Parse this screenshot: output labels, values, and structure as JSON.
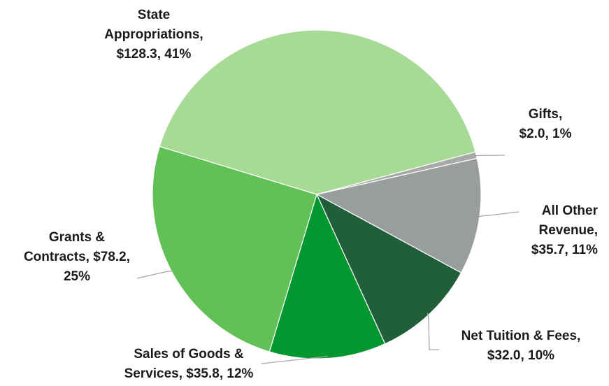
{
  "chart_data": {
    "type": "pie",
    "title": "",
    "start_angle_deg": -15,
    "direction": "clockwise",
    "slices": [
      {
        "name": "Gifts",
        "value": 2.0,
        "percent": "1%",
        "color": "#a7aaa6",
        "label_lines": [
          "Gifts,",
          "$2.0, 1%"
        ]
      },
      {
        "name": "All Other Revenue",
        "value": 35.7,
        "percent": "11%",
        "color": "#9a9d9e",
        "label_lines": [
          "All Other",
          "Revenue,",
          "$35.7, 11%"
        ]
      },
      {
        "name": "Net Tuition & Fees",
        "value": 32.0,
        "percent": "10%",
        "color": "#215f3b",
        "label_lines": [
          "Net Tuition & Fees,",
          "$32.0, 10%"
        ]
      },
      {
        "name": "Sales of Goods & Services",
        "value": 35.8,
        "percent": "12%",
        "color": "#04962f",
        "label_lines": [
          "Sales of Goods &",
          "Services, $35.8, 12%"
        ]
      },
      {
        "name": "Grants & Contracts",
        "value": 78.2,
        "percent": "25%",
        "color": "#61c156",
        "label_lines": [
          "Grants &",
          "Contracts, $78.2,",
          "25%"
        ]
      },
      {
        "name": "State Appropriations",
        "value": 128.3,
        "percent": "41%",
        "color": "#a6da95",
        "label_lines": [
          "State",
          "Appropriations,",
          "$128.3, 41%"
        ]
      }
    ]
  }
}
